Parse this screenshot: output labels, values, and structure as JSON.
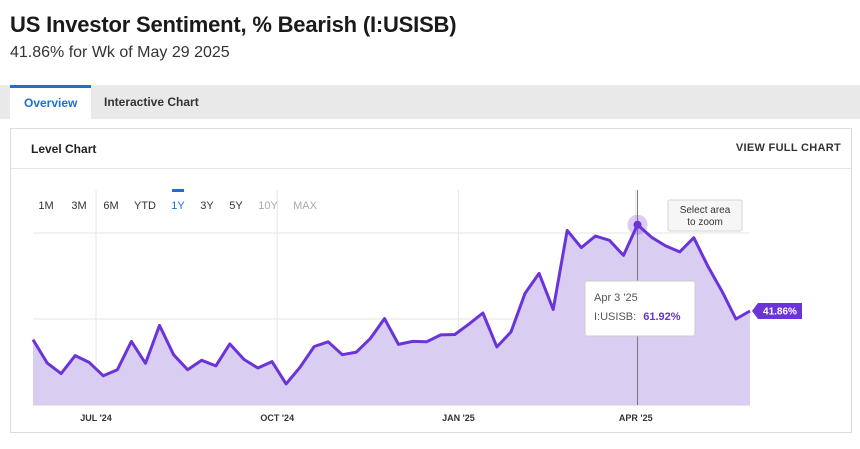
{
  "header": {
    "title": "US Investor Sentiment, % Bearish (I:USISB)",
    "subtitle": "41.86% for Wk of May 29 2025"
  },
  "tabs": [
    {
      "label": "Overview",
      "active": true
    },
    {
      "label": "Interactive Chart",
      "active": false
    }
  ],
  "panel": {
    "title": "Level Chart",
    "view_full_label": "VIEW FULL CHART"
  },
  "chart_controls": {
    "ranges": [
      {
        "label": "1M",
        "state": "normal"
      },
      {
        "label": "3M",
        "state": "normal"
      },
      {
        "label": "6M",
        "state": "normal"
      },
      {
        "label": "YTD",
        "state": "normal"
      },
      {
        "label": "1Y",
        "state": "active"
      },
      {
        "label": "3Y",
        "state": "normal"
      },
      {
        "label": "5Y",
        "state": "normal"
      },
      {
        "label": "10Y",
        "state": "disabled"
      },
      {
        "label": "MAX",
        "state": "disabled"
      }
    ],
    "zoom_hint": [
      "Select area",
      "to zoom"
    ]
  },
  "tooltip": {
    "date": "Apr 3 '25",
    "series_label": "I:USISB:",
    "value_text": "61.92%"
  },
  "last_value_label": "41.86%",
  "colors": {
    "line": "#6a34d8",
    "fill": "#d9cdf2",
    "accent": "#1f6fd1",
    "label_bg": "#6a34d8"
  },
  "chart_data": {
    "type": "area",
    "series_name": "I:USISB",
    "unit": "%",
    "x_start": "2024-05-30",
    "x_end": "2025-05-29",
    "x_ticks": [
      {
        "label": "JUL '24",
        "date": "2024-07-01"
      },
      {
        "label": "OCT '24",
        "date": "2024-10-01"
      },
      {
        "label": "JAN '25",
        "date": "2025-01-01"
      },
      {
        "label": "APR '25",
        "date": "2025-04-01"
      }
    ],
    "ylim": [
      20,
      70
    ],
    "values": [
      35.2,
      29.8,
      27.3,
      31.5,
      29.9,
      26.8,
      28.2,
      34.8,
      29.7,
      38.5,
      31.7,
      28.2,
      30.4,
      29.1,
      34.2,
      30.6,
      28.6,
      30.1,
      24.9,
      28.8,
      33.6,
      34.7,
      31.7,
      32.3,
      35.5,
      40.1,
      34.1,
      34.8,
      34.7,
      36.3,
      36.4,
      38.8,
      41.4,
      33.5,
      37.0,
      46.0,
      50.6,
      42.2,
      60.6,
      56.6,
      59.3,
      58.3,
      54.8,
      61.92,
      59.0,
      57.0,
      55.6,
      58.9,
      52.3,
      46.5,
      40.0,
      41.86
    ],
    "highlight": {
      "date": "Apr 3 '25",
      "value": 61.92
    }
  }
}
